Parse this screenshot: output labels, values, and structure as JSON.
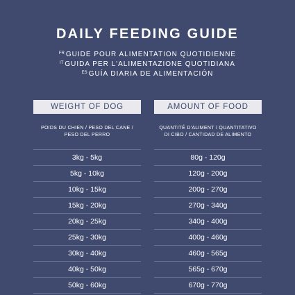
{
  "title": "DAILY FEEDING GUIDE",
  "subtitles": [
    {
      "lang": "FR",
      "text": "GUIDE POUR ALIMENTATION QUOTIDIENNE"
    },
    {
      "lang": "IT",
      "text": "GUIDA PER L'ALIMENTAZIONE QUOTIDIANA"
    },
    {
      "lang": "ES",
      "text": "GUÍA DIARIA DE ALIMENTACIÓN"
    }
  ],
  "columns": {
    "weight": {
      "header": "WEIGHT OF DOG",
      "sub_line1": "POIDS DU CHIEN / PESO DEL CANE /",
      "sub_line2": "PESO DEL PERRO"
    },
    "food": {
      "header": "AMOUNT OF FOOD",
      "sub_line1": "QUANTITÉ D'ALIMENT / QUANTITATIVO",
      "sub_line2": "DI CIBO / CANTIDAD DE ALIMENTO"
    }
  },
  "rows": [
    {
      "weight": "3kg - 5kg",
      "food": "80g - 120g"
    },
    {
      "weight": "5kg - 10kg",
      "food": "120g - 200g"
    },
    {
      "weight": "10kg - 15kg",
      "food": "200g - 270g"
    },
    {
      "weight": "15kg - 20kg",
      "food": "270g - 340g"
    },
    {
      "weight": "20kg - 25kg",
      "food": "340g - 400g"
    },
    {
      "weight": "25kg - 30kg",
      "food": "400g - 460g"
    },
    {
      "weight": "30kg - 40kg",
      "food": "460g - 565g"
    },
    {
      "weight": "40kg - 50kg",
      "food": "565g - 670g"
    },
    {
      "weight": "50kg - 60kg",
      "food": "670g - 770g"
    }
  ],
  "colors": {
    "background": "#3f4a6e",
    "header_fill": "#e9e9ee",
    "text": "#ffffff"
  }
}
